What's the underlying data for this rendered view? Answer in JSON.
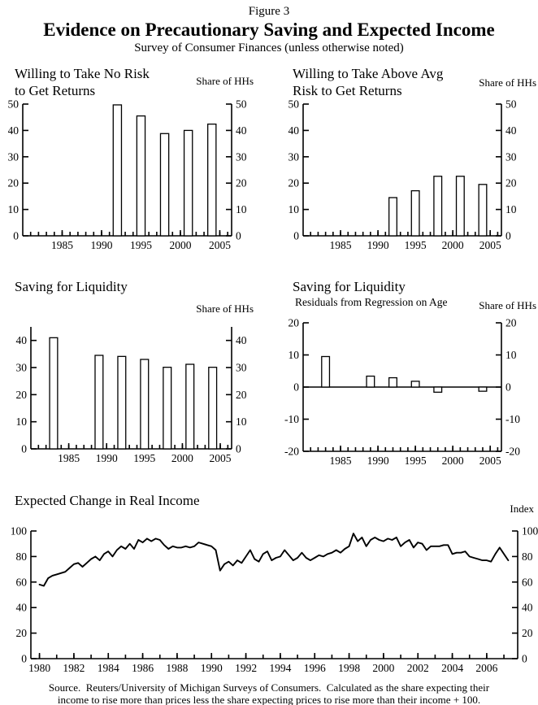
{
  "header": {
    "figure_label": "Figure 3",
    "title": "Evidence on Precautionary Saving and Expected Income",
    "subtitle": "Survey of Consumer Finances (unless otherwise noted)"
  },
  "colors": {
    "ink": "#000000",
    "background": "#ffffff"
  },
  "source_note": {
    "line1": "Source.  Reuters/University of Michigan Surveys of Consumers.  Calculated as the share expecting their",
    "line2": "income to rise more than prices less the share expecting prices to rise more than their income + 100."
  },
  "chart_data": [
    {
      "id": "willing-no-risk",
      "type": "bar",
      "title_lines": [
        "Willing to Take No Risk",
        "to Get Returns"
      ],
      "unit_label": "Share of HHs",
      "categories": [
        1992,
        1995,
        1998,
        2001,
        2004
      ],
      "values": [
        49.7,
        45.5,
        38.8,
        40.0,
        42.4
      ],
      "xlim": [
        1980,
        2006.5
      ],
      "ylim": [
        0,
        50
      ],
      "yticks": [
        0,
        10,
        20,
        30,
        40,
        50
      ],
      "xticks_labeled": [
        1985,
        1990,
        1995,
        2000,
        2005
      ],
      "xtick_minor_from": 1981,
      "xtick_minor_to": 2006,
      "xtick_minor_step": 1,
      "bar_width_years": 1.05,
      "zero_line": false
    },
    {
      "id": "willing-above-avg-risk",
      "type": "bar",
      "title_lines": [
        "Willing to Take Above Avg",
        "Risk to Get Returns"
      ],
      "unit_label": "Share of HHs",
      "categories": [
        1992,
        1995,
        1998,
        2001,
        2004
      ],
      "values": [
        14.5,
        17.1,
        22.6,
        22.6,
        19.5
      ],
      "xlim": [
        1980,
        2006.5
      ],
      "ylim": [
        0,
        50
      ],
      "yticks": [
        0,
        10,
        20,
        30,
        40,
        50
      ],
      "xticks_labeled": [
        1985,
        1990,
        1995,
        2000,
        2005
      ],
      "xtick_minor_from": 1981,
      "xtick_minor_to": 2006,
      "xtick_minor_step": 1,
      "bar_width_years": 1.05,
      "zero_line": false
    },
    {
      "id": "saving-for-liquidity",
      "type": "bar",
      "title_lines": [
        "Saving for Liquidity"
      ],
      "unit_label": "Share of HHs",
      "categories": [
        1983,
        1989,
        1992,
        1995,
        1998,
        2001,
        2004
      ],
      "values": [
        41.0,
        34.5,
        34.1,
        33.0,
        30.1,
        31.2,
        30.1
      ],
      "xlim": [
        1980,
        2006.5
      ],
      "ylim": [
        0,
        45
      ],
      "yticks": [
        0,
        10,
        20,
        30,
        40
      ],
      "xticks_labeled": [
        1985,
        1990,
        1995,
        2000,
        2005
      ],
      "xtick_minor_from": 1981,
      "xtick_minor_to": 2006,
      "xtick_minor_step": 1,
      "bar_width_years": 1.05,
      "zero_line": false
    },
    {
      "id": "saving-for-liquidity-residuals",
      "type": "bar",
      "title_lines": [
        "Saving for Liquidity"
      ],
      "chart_subtitle": "Residuals from Regression on Age",
      "unit_label": "Share of HHs",
      "categories": [
        1983,
        1989,
        1992,
        1995,
        1998,
        2004
      ],
      "values": [
        9.5,
        3.4,
        2.9,
        1.8,
        -1.6,
        -1.3
      ],
      "xlim": [
        1980,
        2006.5
      ],
      "ylim": [
        -20,
        20
      ],
      "yticks": [
        -20,
        -10,
        0,
        10,
        20
      ],
      "xticks_labeled": [
        1985,
        1990,
        1995,
        2000,
        2005
      ],
      "xtick_minor_from": 1981,
      "xtick_minor_to": 2006,
      "xtick_minor_step": 1,
      "bar_width_years": 1.05,
      "zero_line": true
    },
    {
      "id": "expected-change-real-income",
      "type": "line",
      "title_lines": [
        "Expected Change in Real Income"
      ],
      "unit_label": "Index",
      "x_start": 1980.0,
      "x_step": 0.25,
      "values": [
        58,
        57,
        63,
        65,
        66,
        67,
        68,
        71,
        74,
        75,
        72,
        75,
        78,
        80,
        77,
        82,
        84,
        80,
        85,
        88,
        86,
        90,
        86,
        93,
        91,
        94,
        92,
        94,
        93,
        89,
        86,
        88,
        87,
        87,
        88,
        87,
        88,
        91,
        90,
        89,
        88,
        85,
        69,
        74,
        76,
        73,
        77,
        75,
        80,
        85,
        78,
        76,
        82,
        84,
        77,
        79,
        80,
        85,
        81,
        77,
        79,
        83,
        79,
        77,
        79,
        81,
        80,
        82,
        83,
        85,
        83,
        86,
        88,
        98,
        92,
        95,
        88,
        93,
        95,
        93,
        92,
        94,
        93,
        95,
        88,
        91,
        93,
        87,
        91,
        90,
        85,
        88,
        88,
        88,
        89,
        89,
        82,
        83,
        83,
        84,
        80,
        79,
        78,
        77,
        77,
        76,
        82,
        87,
        82,
        77
      ],
      "xlim": [
        1979.5,
        2007.8
      ],
      "ylim": [
        0,
        100
      ],
      "yticks": [
        0,
        20,
        40,
        60,
        80,
        100
      ],
      "xticks_labeled": [
        1980,
        1982,
        1984,
        1986,
        1988,
        1990,
        1992,
        1994,
        1996,
        1998,
        2000,
        2002,
        2004,
        2006
      ],
      "xtick_minor_from": 1980,
      "xtick_minor_to": 2007,
      "xtick_minor_step": 1,
      "zero_line": false
    }
  ]
}
